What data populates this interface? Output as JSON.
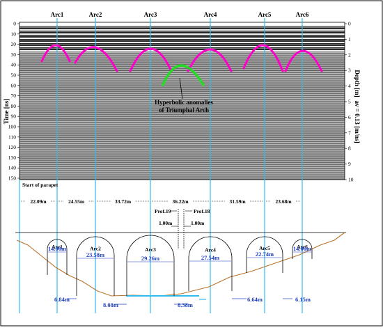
{
  "arcs": [
    "Arc1",
    "Arc2",
    "Arc3",
    "Arc4",
    "Arc5",
    "Arc6"
  ],
  "time_axis": {
    "label": "Time [ns]",
    "ticks": [
      "0",
      "10",
      "20",
      "30",
      "40",
      "50",
      "60",
      "70",
      "80",
      "90",
      "100",
      "110",
      "120",
      "130",
      "140",
      "150"
    ]
  },
  "depth_axis": {
    "label": "Depth [m]",
    "velocity_label": "av = 0.13 [m/ns]",
    "ticks": [
      "0",
      "1",
      "2",
      "3",
      "4",
      "5",
      "6",
      "7",
      "8",
      "9",
      "10"
    ]
  },
  "annotation": {
    "line1": "Hyperbolic anomalies",
    "line2": "of Triumphal Arch"
  },
  "start_label": "Start of parapet",
  "spacings": [
    "22.09m",
    "24.55m",
    "33.72m",
    "36.22m",
    "31.59m",
    "23.68m"
  ],
  "profiles": {
    "prof19": "Prof.19",
    "prof18": "Prof.18",
    "offset_left": "1.00m",
    "offset_right": "1.00m"
  },
  "arc_widths": [
    "14.00m",
    "23.58m",
    "29.26m",
    "27.54m",
    "22.74m",
    "14.00m"
  ],
  "pier_widths": [
    "6.84m",
    "8.08m",
    "8.38m",
    "6.64m",
    "6.15m"
  ],
  "colors": {
    "hyperbola_main": "#ff00cc",
    "hyperbola_green": "#22dd22",
    "vertical_lines": "#33bbee",
    "dimension_text": "#1f3fbf",
    "terrain": "#b8732a"
  }
}
